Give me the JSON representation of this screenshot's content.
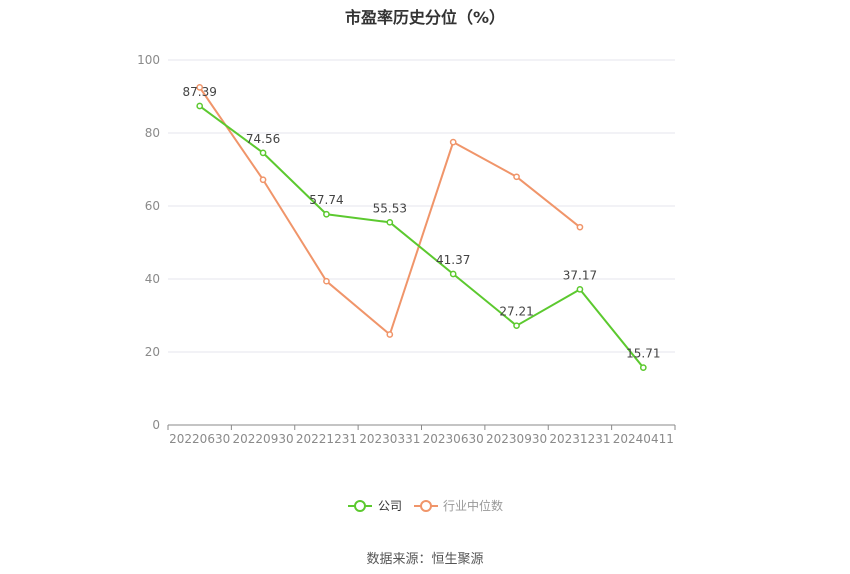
{
  "chart_data": {
    "type": "line",
    "title": "市盈率历史分位（%）",
    "categories": [
      "20220630",
      "20220930",
      "20221231",
      "20230331",
      "20230630",
      "20230930",
      "20231231",
      "20240411"
    ],
    "ylim": [
      0,
      100
    ],
    "yticks": [
      0,
      20,
      40,
      60,
      80,
      100
    ],
    "grid": true,
    "legend_position": "bottom-center",
    "series": [
      {
        "name": "公司",
        "color": "#5cc92f",
        "values": [
          87.39,
          74.56,
          57.74,
          55.53,
          41.37,
          27.21,
          37.17,
          15.71
        ],
        "labels": [
          "87.39",
          "74.56",
          "57.74",
          "55.53",
          "41.37",
          "27.21",
          "37.17",
          "15.71"
        ]
      },
      {
        "name": "行业中位数",
        "color": "#f0956a",
        "values": [
          92.5,
          67.2,
          39.4,
          24.8,
          77.5,
          68.0,
          54.2,
          null
        ]
      }
    ]
  },
  "source": "数据来源：恒生聚源"
}
